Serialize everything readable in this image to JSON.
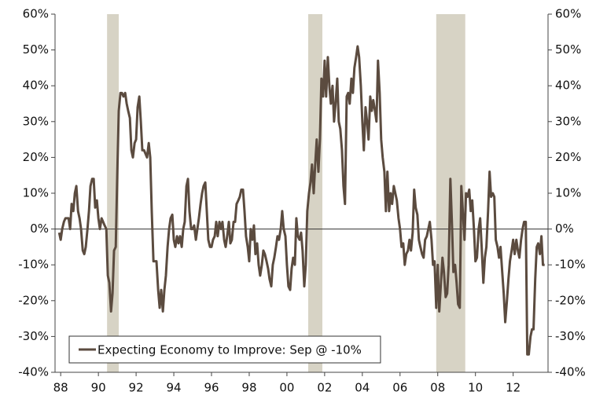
{
  "chart_data": {
    "type": "line",
    "xlim": [
      1987.7,
      2013.85
    ],
    "xticks": [
      {
        "value": 1988,
        "label": "88"
      },
      {
        "value": 1990,
        "label": "90"
      },
      {
        "value": 1992,
        "label": "92"
      },
      {
        "value": 1994,
        "label": "94"
      },
      {
        "value": 1996,
        "label": "96"
      },
      {
        "value": 1998,
        "label": "98"
      },
      {
        "value": 2000,
        "label": "00"
      },
      {
        "value": 2002,
        "label": "02"
      },
      {
        "value": 2004,
        "label": "04"
      },
      {
        "value": 2006,
        "label": "06"
      },
      {
        "value": 2008,
        "label": "08"
      },
      {
        "value": 2010,
        "label": "10"
      },
      {
        "value": 2012,
        "label": "12"
      }
    ],
    "ylim": [
      -40,
      60
    ],
    "yticks": [
      {
        "value": -40,
        "label": "-40%"
      },
      {
        "value": -30,
        "label": "-30%"
      },
      {
        "value": -20,
        "label": "-20%"
      },
      {
        "value": -10,
        "label": "-10%"
      },
      {
        "value": 0,
        "label": "0%"
      },
      {
        "value": 10,
        "label": "10%"
      },
      {
        "value": 20,
        "label": "20%"
      },
      {
        "value": 30,
        "label": "30%"
      },
      {
        "value": 40,
        "label": "40%"
      },
      {
        "value": 50,
        "label": "50%"
      },
      {
        "value": 60,
        "label": "60%"
      }
    ],
    "y2lim": [
      -40,
      60
    ],
    "y2ticks": [
      {
        "value": -40,
        "label": "-40%"
      },
      {
        "value": -30,
        "label": "-30%"
      },
      {
        "value": -20,
        "label": "-20%"
      },
      {
        "value": -10,
        "label": "-10%"
      },
      {
        "value": 0,
        "label": "0%"
      },
      {
        "value": 10,
        "label": "10%"
      },
      {
        "value": 20,
        "label": "20%"
      },
      {
        "value": 30,
        "label": "30%"
      },
      {
        "value": 40,
        "label": "40%"
      },
      {
        "value": 50,
        "label": "50%"
      },
      {
        "value": 60,
        "label": "60%"
      }
    ],
    "shaded_periods": [
      [
        1990.46,
        1991.08
      ],
      [
        2001.13,
        2001.88
      ],
      [
        2007.92,
        2009.46
      ]
    ],
    "shade_color": "#d7d3c5",
    "legend": "bottom-left",
    "x": [
      1987.92,
      1988.0,
      1988.08,
      1988.17,
      1988.25,
      1988.33,
      1988.42,
      1988.5,
      1988.58,
      1988.67,
      1988.75,
      1988.83,
      1988.92,
      1989.0,
      1989.08,
      1989.17,
      1989.25,
      1989.33,
      1989.42,
      1989.5,
      1989.58,
      1989.67,
      1989.75,
      1989.83,
      1989.92,
      1990.0,
      1990.08,
      1990.17,
      1990.25,
      1990.33,
      1990.42,
      1990.5,
      1990.58,
      1990.67,
      1990.75,
      1990.83,
      1990.92,
      1991.0,
      1991.08,
      1991.17,
      1991.25,
      1991.33,
      1991.42,
      1991.5,
      1991.58,
      1991.67,
      1991.75,
      1991.83,
      1991.92,
      1992.0,
      1992.08,
      1992.17,
      1992.25,
      1992.33,
      1992.42,
      1992.5,
      1992.58,
      1992.67,
      1992.75,
      1992.83,
      1992.92,
      1993.0,
      1993.08,
      1993.17,
      1993.25,
      1993.33,
      1993.42,
      1993.5,
      1993.58,
      1993.67,
      1993.75,
      1993.83,
      1993.92,
      1994.0,
      1994.08,
      1994.17,
      1994.25,
      1994.33,
      1994.42,
      1994.5,
      1994.58,
      1994.67,
      1994.75,
      1994.83,
      1994.92,
      1995.0,
      1995.08,
      1995.17,
      1995.25,
      1995.33,
      1995.42,
      1995.5,
      1995.58,
      1995.67,
      1995.75,
      1995.83,
      1995.92,
      1996.0,
      1996.08,
      1996.17,
      1996.25,
      1996.33,
      1996.42,
      1996.5,
      1996.58,
      1996.67,
      1996.75,
      1996.83,
      1996.92,
      1997.0,
      1997.08,
      1997.17,
      1997.25,
      1997.33,
      1997.42,
      1997.5,
      1997.58,
      1997.67,
      1997.75,
      1997.83,
      1997.92,
      1998.0,
      1998.08,
      1998.17,
      1998.25,
      1998.33,
      1998.42,
      1998.5,
      1998.58,
      1998.67,
      1998.75,
      1998.83,
      1998.92,
      1999.0,
      1999.08,
      1999.17,
      1999.25,
      1999.33,
      1999.42,
      1999.5,
      1999.58,
      1999.67,
      1999.75,
      1999.83,
      1999.92,
      2000.0,
      2000.08,
      2000.17,
      2000.25,
      2000.33,
      2000.42,
      2000.5,
      2000.58,
      2000.67,
      2000.75,
      2000.83,
      2000.92,
      2001.0,
      2001.08,
      2001.17,
      2001.25,
      2001.33,
      2001.42,
      2001.5,
      2001.58,
      2001.67,
      2001.75,
      2001.83,
      2001.92,
      2002.0,
      2002.08,
      2002.17,
      2002.25,
      2002.33,
      2002.42,
      2002.5,
      2002.58,
      2002.67,
      2002.75,
      2002.83,
      2002.92,
      2003.0,
      2003.08,
      2003.17,
      2003.25,
      2003.33,
      2003.42,
      2003.5,
      2003.58,
      2003.67,
      2003.75,
      2003.83,
      2003.92,
      2004.0,
      2004.08,
      2004.17,
      2004.25,
      2004.33,
      2004.42,
      2004.5,
      2004.58,
      2004.67,
      2004.75,
      2004.83,
      2004.92,
      2005.0,
      2005.08,
      2005.17,
      2005.25,
      2005.33,
      2005.42,
      2005.5,
      2005.58,
      2005.67,
      2005.75,
      2005.83,
      2005.92,
      2006.0,
      2006.08,
      2006.17,
      2006.25,
      2006.33,
      2006.42,
      2006.5,
      2006.58,
      2006.67,
      2006.75,
      2006.83,
      2006.92,
      2007.0,
      2007.08,
      2007.17,
      2007.25,
      2007.33,
      2007.42,
      2007.5,
      2007.58,
      2007.67,
      2007.75,
      2007.83,
      2007.92,
      2008.0,
      2008.08,
      2008.17,
      2008.25,
      2008.33,
      2008.42,
      2008.5,
      2008.58,
      2008.67,
      2008.75,
      2008.83,
      2008.92,
      2009.0,
      2009.08,
      2009.17,
      2009.25,
      2009.33,
      2009.42,
      2009.5,
      2009.58,
      2009.67,
      2009.75,
      2009.83,
      2009.92,
      2010.0,
      2010.08,
      2010.17,
      2010.25,
      2010.33,
      2010.42,
      2010.5,
      2010.58,
      2010.67,
      2010.75,
      2010.83,
      2010.92,
      2011.0,
      2011.08,
      2011.17,
      2011.25,
      2011.33,
      2011.42,
      2011.5,
      2011.58,
      2011.67,
      2011.75,
      2011.83,
      2011.92,
      2012.0,
      2012.08,
      2012.17,
      2012.25,
      2012.33,
      2012.42,
      2012.5,
      2012.58,
      2012.67,
      2012.75,
      2012.83,
      2012.92,
      2013.0,
      2013.08,
      2013.17,
      2013.25,
      2013.33,
      2013.42,
      2013.5,
      2013.58,
      2013.67
    ],
    "series": [
      {
        "name": "Expecting Economy to Improve: Sep @ -10%",
        "color": "#5b4b3f",
        "values": [
          -1,
          -3,
          0,
          2,
          3,
          3,
          3,
          0,
          7,
          5,
          10,
          12,
          5,
          3,
          0,
          -6,
          -7,
          -5,
          0,
          5,
          12,
          14,
          14,
          6,
          8,
          3,
          0,
          3,
          2,
          1,
          0,
          -13,
          -15,
          -23,
          -18,
          -6,
          -5,
          15,
          33,
          38,
          38,
          37,
          38,
          35,
          33,
          31,
          22,
          20,
          24,
          25,
          34,
          37,
          30,
          22,
          22,
          21,
          20,
          24,
          20,
          5,
          -9,
          -9,
          -9,
          -17,
          -22,
          -17,
          -23,
          -17,
          -13,
          -5,
          0,
          3,
          4,
          -3,
          -5,
          -2,
          -4,
          -2,
          -5,
          0,
          2,
          12,
          14,
          5,
          0,
          0,
          1,
          -3,
          0,
          3,
          7,
          10,
          12,
          13,
          5,
          -3,
          -5,
          -5,
          -3,
          -2,
          2,
          -2,
          2,
          0,
          2,
          -3,
          -5,
          -2,
          2,
          -4,
          -3,
          2,
          2,
          7,
          8,
          9,
          11,
          11,
          5,
          -2,
          -5,
          -9,
          0,
          -3,
          1,
          -7,
          -4,
          -10,
          -13,
          -10,
          -6,
          -7,
          -9,
          -11,
          -14,
          -16,
          -10,
          -8,
          -5,
          -2,
          -3,
          0,
          5,
          0,
          -2,
          -10,
          -16,
          -17,
          -11,
          -8,
          -10,
          3,
          -2,
          -3,
          -1,
          -6,
          -16,
          -10,
          5,
          10,
          13,
          18,
          10,
          18,
          25,
          16,
          25,
          42,
          37,
          47,
          37,
          48,
          40,
          35,
          40,
          30,
          35,
          42,
          30,
          28,
          22,
          12,
          7,
          37,
          38,
          35,
          42,
          38,
          45,
          48,
          51,
          48,
          40,
          30,
          22,
          34,
          30,
          25,
          37,
          33,
          36,
          33,
          30,
          47,
          38,
          25,
          20,
          16,
          5,
          16,
          5,
          10,
          7,
          12,
          10,
          8,
          3,
          0,
          -5,
          -4,
          -10,
          -7,
          -6,
          -3,
          -6,
          -1,
          11,
          6,
          4,
          -3,
          -5,
          -7,
          -8,
          -3,
          -2,
          0,
          2,
          -3,
          -10,
          -9,
          -22,
          -10,
          -23,
          -15,
          -8,
          -12,
          -19,
          -18,
          -10,
          14,
          2,
          -12,
          -10,
          -15,
          -21,
          -22,
          12,
          5,
          -3,
          10,
          9,
          11,
          5,
          8,
          0,
          -9,
          -8,
          0,
          3,
          -5,
          -15,
          -8,
          -5,
          5,
          16,
          9,
          10,
          9,
          -3,
          -5,
          -8,
          -5,
          -12,
          -18,
          -26,
          -20,
          -14,
          -9,
          -6,
          -3,
          -7,
          -3,
          -6,
          -8,
          -3,
          0,
          2,
          2,
          -35,
          -35,
          -30,
          -28,
          -28,
          -14,
          -5,
          -4,
          -7,
          -2,
          -10,
          -10
        ]
      }
    ]
  }
}
